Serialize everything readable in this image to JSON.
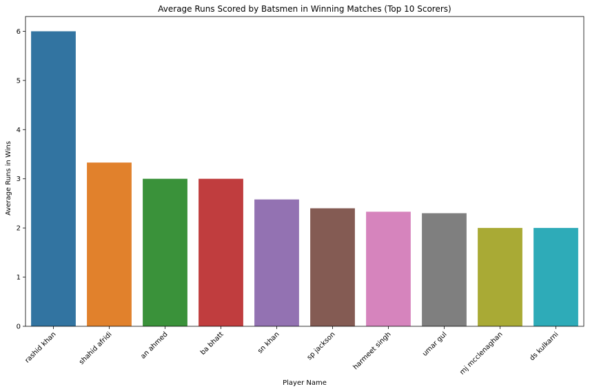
{
  "chart_data": {
    "type": "bar",
    "title": "Average Runs Scored by Batsmen in Winning Matches (Top 10 Scorers)",
    "xlabel": "Player Name",
    "ylabel": "Average Runs in Wins",
    "categories": [
      "rashid khan",
      "shahid afridi",
      "an ahmed",
      "ba bhatt",
      "sn khan",
      "sp jackson",
      "harmeet singh",
      "umar gul",
      "mj mcclenaghan",
      "ds kulkarni"
    ],
    "values": [
      6.0,
      3.33,
      3.0,
      3.0,
      2.58,
      2.4,
      2.33,
      2.3,
      2.0,
      2.0
    ],
    "colors": [
      "#3274a1",
      "#e1812c",
      "#3a923a",
      "#c03d3e",
      "#9372b2",
      "#845b53",
      "#d684bd",
      "#7f7f7f",
      "#a9aa35",
      "#2eabb8"
    ],
    "ylim": [
      0,
      6.3
    ],
    "yticks": [
      0,
      1,
      2,
      3,
      4,
      5,
      6
    ],
    "grid": false,
    "legend": "none"
  }
}
